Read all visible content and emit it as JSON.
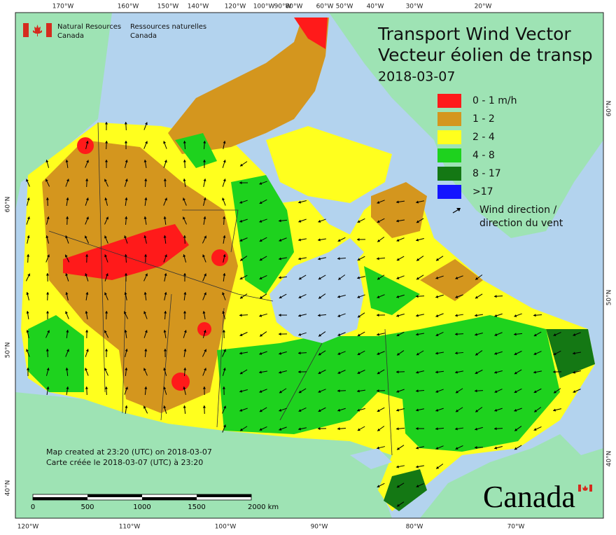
{
  "header": {
    "title_en": "Transport Wind Vector",
    "title_fr": "Vecteur éolien de transp",
    "date": "2018-03-07",
    "agency_en": [
      "Natural Resources",
      "Canada"
    ],
    "agency_fr": [
      "Ressources naturelles",
      "Canada"
    ]
  },
  "graticule": {
    "top": [
      "170°W",
      "160°W",
      "150°W",
      "140°W",
      "120°W",
      "100°W",
      "90°W",
      "80°W",
      "60°W",
      "50°W",
      "40°W",
      "30°W",
      "20°W"
    ],
    "bottom": [
      "120°W",
      "110°W",
      "100°W",
      "90°W",
      "80°W",
      "70°W"
    ],
    "left": [
      "60°N",
      "50°N",
      "40°N"
    ],
    "right": [
      "60°N",
      "50°N",
      "40°N"
    ]
  },
  "legend": {
    "items": [
      {
        "label": "0 - 1 m/h",
        "color": "#ff1a1a"
      },
      {
        "label": "1 - 2",
        "color": "#d4961e"
      },
      {
        "label": "2 - 4",
        "color": "#ffff1e"
      },
      {
        "label": "4 - 8",
        "color": "#1ed21e"
      },
      {
        "label": "8 - 17",
        "color": "#147814"
      },
      {
        "label": ">17",
        "color": "#1414ff"
      }
    ],
    "arrow_label": [
      "Wind direction /",
      "direction du vent"
    ]
  },
  "notes": [
    "Map created at 23:20 (UTC) on 2018-03-07",
    "Carte créée le 2018-03-07 (UTC) à 23:20"
  ],
  "scale_bar": [
    "0",
    "500",
    "1000",
    "1500",
    "2000 km"
  ],
  "wordmark": "Canada"
}
